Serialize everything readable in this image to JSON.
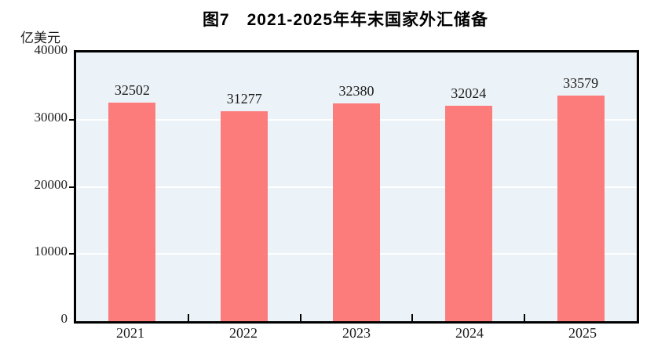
{
  "chart_data": {
    "type": "bar",
    "title": "图7　2021-2025年年末国家外汇储备",
    "unit_label": "亿美元",
    "categories": [
      "2021",
      "2022",
      "2023",
      "2024",
      "2025"
    ],
    "values": [
      32502,
      31277,
      32380,
      32024,
      33579
    ],
    "series_name": "年末国家外汇储备",
    "xlabel": "",
    "ylabel": "亿美元",
    "ylim": [
      0,
      40000
    ],
    "ytick_interval": 10000,
    "ytick_labels": [
      "40000",
      "30000",
      "20000",
      "10000",
      "0"
    ],
    "grid": true,
    "gridline_color": "#FFFFFF",
    "legend_position": "none",
    "bar_color": "#FC7C7C",
    "plot_background_color": "#ECF3F8",
    "axis_color": "#000000"
  }
}
